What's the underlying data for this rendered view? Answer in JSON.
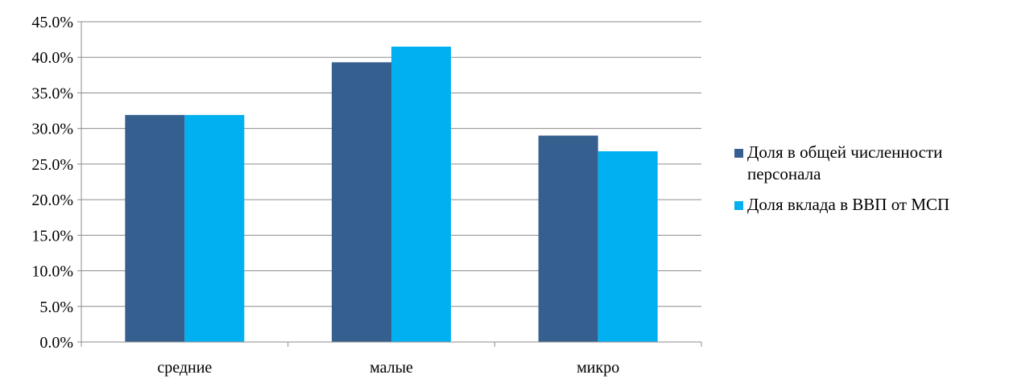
{
  "chart_data": {
    "type": "bar",
    "categories": [
      "средние",
      "малые",
      "микро"
    ],
    "series": [
      {
        "name": "Доля в общей численности персонала",
        "values": [
          31.9,
          39.3,
          29.0
        ],
        "color": "#355F8F"
      },
      {
        "name": "Доля вклада в ВВП от МСП",
        "values": [
          31.9,
          41.5,
          26.8
        ],
        "color": "#00B0F0"
      }
    ],
    "y_ticks": [
      "0.0%",
      "5.0%",
      "10.0%",
      "15.0%",
      "20.0%",
      "25.0%",
      "30.0%",
      "35.0%",
      "40.0%",
      "45.0%"
    ],
    "ylim": [
      0,
      45
    ],
    "grid": true,
    "legend_position": "right",
    "title": "",
    "xlabel": "",
    "ylabel": ""
  }
}
